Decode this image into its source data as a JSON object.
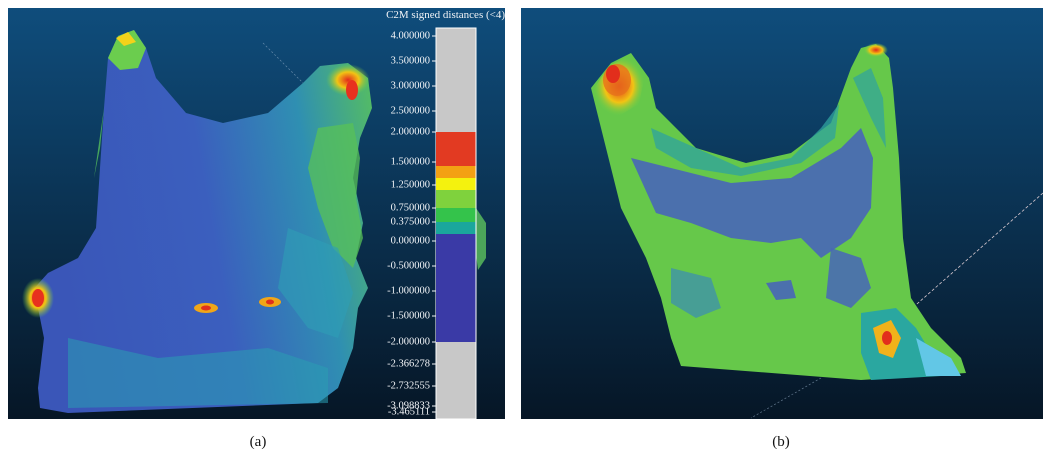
{
  "panel_a": {
    "scalar_bar": {
      "title": "C2M signed distances (<4)",
      "ticks": [
        {
          "label": "4.000000",
          "value": 4.0
        },
        {
          "label": "3.500000",
          "value": 3.5
        },
        {
          "label": "3.000000",
          "value": 3.0
        },
        {
          "label": "2.500000",
          "value": 2.5
        },
        {
          "label": "2.000000",
          "value": 2.0
        },
        {
          "label": "1.500000",
          "value": 1.5
        },
        {
          "label": "1.250000",
          "value": 1.25
        },
        {
          "label": "0.750000",
          "value": 0.75
        },
        {
          "label": "0.375000",
          "value": 0.375
        },
        {
          "label": "0.000000",
          "value": 0.0
        },
        {
          "label": "-0.500000",
          "value": -0.5
        },
        {
          "label": "-1.000000",
          "value": -1.0
        },
        {
          "label": "-1.500000",
          "value": -1.5
        },
        {
          "label": "-2.000000",
          "value": -2.0
        },
        {
          "label": "-2.366278",
          "value": -2.366278
        },
        {
          "label": "-2.732555",
          "value": -2.732555
        },
        {
          "label": "-3.098833",
          "value": -3.098833
        },
        {
          "label": "-3.465111",
          "value": -3.465111
        }
      ],
      "colors": {
        "out_of_range": "#c8c8c8",
        "red": "#e23a22",
        "orange": "#f3a013",
        "yellow": "#f4f20e",
        "green": "#34c34b",
        "teal": "#1aa79c",
        "blue": "#3a3aa6"
      }
    },
    "caption": "(a)"
  },
  "panel_b": {
    "caption": "(b)"
  },
  "colors": {
    "viewport_top": "#0e4a78",
    "viewport_bottom": "#06182a",
    "surface_blue": "#3f63b8",
    "surface_green": "#66c84a",
    "surface_teal": "#2aa7a0"
  }
}
